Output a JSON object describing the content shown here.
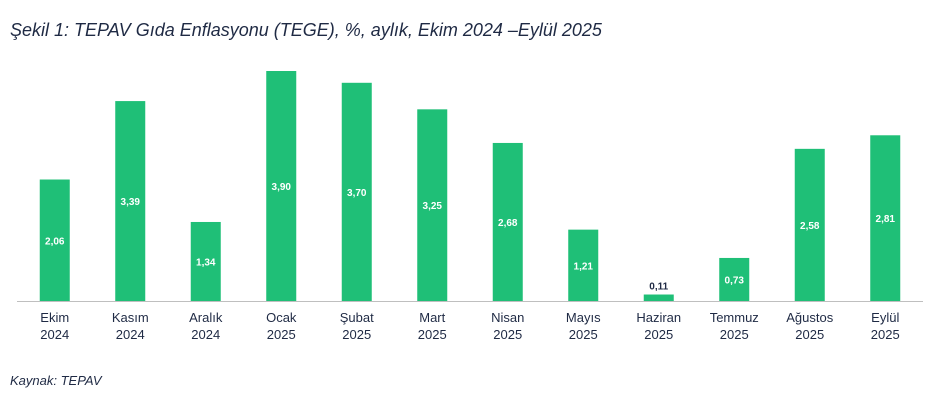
{
  "title": "Şekil 1: TEPAV Gıda Enflasyonu (TEGE), %, aylık, Ekim 2024 –Eylül 2025",
  "source": "Kaynak: TEPAV",
  "colors": {
    "bar": "#1fbf77"
  },
  "chart_data": {
    "type": "bar",
    "title": "Şekil 1: TEPAV Gıda Enflasyonu (TEGE), %, aylık, Ekim 2024 –Eylül 2025",
    "xlabel": "",
    "ylabel": "",
    "ylim": [
      0,
      3.9
    ],
    "grid": false,
    "legend": "none",
    "categories": [
      [
        "Ekim",
        "2024"
      ],
      [
        "Kasım",
        "2024"
      ],
      [
        "Aralık",
        "2024"
      ],
      [
        "Ocak",
        "2025"
      ],
      [
        "Şubat",
        "2025"
      ],
      [
        "Mart",
        "2025"
      ],
      [
        "Nisan",
        "2025"
      ],
      [
        "Mayıs",
        "2025"
      ],
      [
        "Haziran",
        "2025"
      ],
      [
        "Temmuz",
        "2025"
      ],
      [
        "Ağustos",
        "2025"
      ],
      [
        "Eylül",
        "2025"
      ]
    ],
    "values": [
      2.06,
      3.39,
      1.34,
      3.9,
      3.7,
      3.25,
      2.68,
      1.21,
      0.11,
      0.73,
      2.58,
      2.81
    ],
    "value_labels": [
      "2,06",
      "3,39",
      "1,34",
      "3,90",
      "3,70",
      "3,25",
      "2,68",
      "1,21",
      "0,11",
      "0,73",
      "2,58",
      "2,81"
    ]
  }
}
